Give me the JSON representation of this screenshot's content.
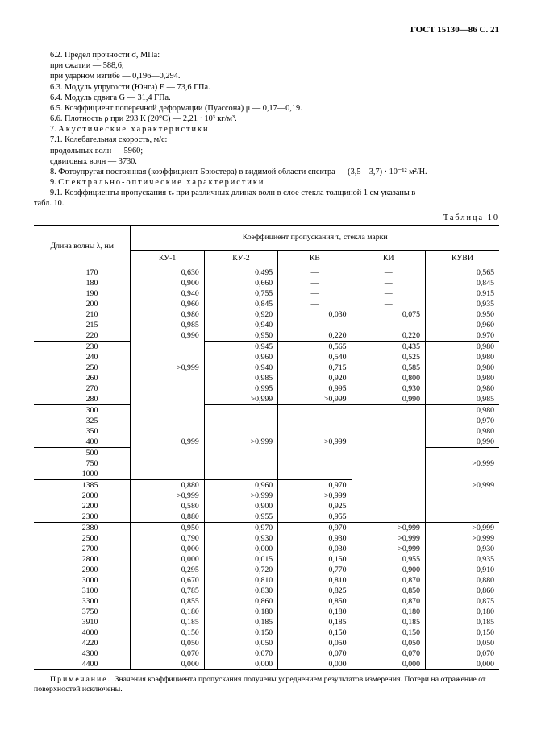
{
  "header": "ГОСТ 15130—86 С. 21",
  "p": {
    "l1": "6.2.  Предел прочности σ, МПа:",
    "l2": "при сжатии — 588,6;",
    "l3": "при ударном изгибе — 0,196—0,294.",
    "l4": "6.3.  Модуль упругости (Юнга) E — 73,6 ГПа.",
    "l5": "6.4.  Модуль сдвига G — 31,4 ГПа.",
    "l6": "6.5.  Коэффициент поперечной деформации (Пуассона) μ — 0,17—0,19.",
    "l7": "6.6.  Плотность ρ при 293 К (20°С) — 2,21 · 10³ кг/м³.",
    "l8a": "7.  ",
    "l8b": "Акустические характеристики",
    "l9": "7.1.  Колебательная скорость, м/с:",
    "l10": "продольных волн — 5960;",
    "l11": "сдвиговых волн — 3730.",
    "l12": "8.  Фотоупругая постоянная (коэффициент Брюстера) в видимой области спектра — (3,5—3,7) · 10⁻¹² м²/Н.",
    "l13a": "9.  ",
    "l13b": "Спектрально-оптические характеристики",
    "l14": "9.1.  Коэффициенты пропускания τᵥ при различных длинах волн в слое стекла толщиной 1 см указаны в",
    "l15": "табл. 10."
  },
  "tableLabel": "Таблица 10",
  "th": {
    "wave": "Длина волны λ, нм",
    "group": "Коэффициент пропускания τᵥ стекла марки",
    "c1": "КУ-1",
    "c2": "КУ-2",
    "c3": "КВ",
    "c4": "КИ",
    "c5": "КУВИ"
  },
  "rows": [
    {
      "w": "170",
      "v": [
        "0,630",
        "0,495",
        "—",
        "—",
        "0,565"
      ],
      "top": [
        "t",
        "t",
        "t",
        "t",
        "t",
        "t"
      ]
    },
    {
      "w": "180",
      "v": [
        "0,900",
        "0,660",
        "—",
        "—",
        "0,845"
      ]
    },
    {
      "w": "190",
      "v": [
        "0,940",
        "0,755",
        "—",
        "—",
        "0,915"
      ]
    },
    {
      "w": "200",
      "v": [
        "0,960",
        "0,845",
        "—",
        "—",
        "0,935"
      ]
    },
    {
      "w": "210",
      "v": [
        "0,980",
        "0,920",
        "0,030",
        "0,075",
        "0,950"
      ]
    },
    {
      "w": "215",
      "v": [
        "0,985",
        "0,940",
        "—",
        "—",
        "0,960"
      ]
    },
    {
      "w": "220",
      "v": [
        "0,990",
        "0,950",
        "0,220",
        "0,220",
        "0,970"
      ]
    },
    {
      "w": "230",
      "v": [
        "",
        "0,945",
        "0,565",
        "0,435",
        "0,980"
      ],
      "top": [
        "t",
        "",
        "t",
        "t",
        "t",
        "t"
      ]
    },
    {
      "w": "240",
      "v": [
        "",
        "0,960",
        "0,540",
        "0,525",
        "0,980"
      ]
    },
    {
      "w": "250",
      "v": [
        ">0,999",
        "0,940",
        "0,715",
        "0,585",
        "0,980"
      ]
    },
    {
      "w": "260",
      "v": [
        "",
        "0,985",
        "0,920",
        "0,800",
        "0,980"
      ]
    },
    {
      "w": "270",
      "v": [
        "",
        "0,995",
        "0,995",
        "0,930",
        "0,980"
      ]
    },
    {
      "w": "280",
      "v": [
        "",
        ">0,999",
        ">0,999",
        "0,990",
        "0,985"
      ]
    },
    {
      "w": "300",
      "v": [
        "",
        "",
        "",
        "",
        "0,980"
      ],
      "top": [
        "t",
        "",
        "t",
        "t",
        "t",
        "t"
      ]
    },
    {
      "w": "325",
      "v": [
        "",
        "",
        "",
        "",
        "0,970"
      ]
    },
    {
      "w": "350",
      "v": [
        "",
        "",
        "",
        "",
        "0,980"
      ]
    },
    {
      "w": "400",
      "v": [
        "0,999",
        ">0,999",
        ">0,999",
        "",
        "0,990"
      ]
    },
    {
      "w": "500",
      "v": [
        "",
        "",
        "",
        "",
        ""
      ],
      "top": [
        "t",
        "",
        "",
        "",
        "",
        "t"
      ]
    },
    {
      "w": "750",
      "v": [
        "",
        "",
        "",
        "",
        ">0,999"
      ]
    },
    {
      "w": "1000",
      "v": [
        "",
        "",
        "",
        "",
        ""
      ]
    },
    {
      "w": "1385",
      "v": [
        "0,880",
        "0,960",
        "0,970",
        "",
        ">0,999"
      ],
      "top": [
        "t",
        "t",
        "t",
        "t",
        "",
        ""
      ]
    },
    {
      "w": "2000",
      "v": [
        ">0,999",
        ">0,999",
        ">0,999",
        "",
        ""
      ]
    },
    {
      "w": "2200",
      "v": [
        "0,580",
        "0,900",
        "0,925",
        "",
        ""
      ]
    },
    {
      "w": "2300",
      "v": [
        "0,880",
        "0,955",
        "0,955",
        "",
        ""
      ]
    },
    {
      "w": "2380",
      "v": [
        "0,950",
        "0,970",
        "0,970",
        ">0,999",
        ">0,999"
      ],
      "top": [
        "t",
        "t",
        "t",
        "t",
        "t",
        "t"
      ]
    },
    {
      "w": "2500",
      "v": [
        "0,790",
        "0,930",
        "0,930",
        ">0,999",
        ">0,999"
      ]
    },
    {
      "w": "2700",
      "v": [
        "0,000",
        "0,000",
        "0,030",
        ">0,999",
        "0,930"
      ]
    },
    {
      "w": "2800",
      "v": [
        "0,000",
        "0,015",
        "0,150",
        "0,955",
        "0,935"
      ]
    },
    {
      "w": "2900",
      "v": [
        "0,295",
        "0,720",
        "0,770",
        "0,900",
        "0,910"
      ]
    },
    {
      "w": "3000",
      "v": [
        "0,670",
        "0,810",
        "0,810",
        "0,870",
        "0,880"
      ]
    },
    {
      "w": "3100",
      "v": [
        "0,785",
        "0,830",
        "0,825",
        "0,850",
        "0,860"
      ]
    },
    {
      "w": "3300",
      "v": [
        "0,855",
        "0,860",
        "0,850",
        "0,870",
        "0,875"
      ]
    },
    {
      "w": "3750",
      "v": [
        "0,180",
        "0,180",
        "0,180",
        "0,180",
        "0,180"
      ]
    },
    {
      "w": "3910",
      "v": [
        "0,185",
        "0,185",
        "0,185",
        "0,185",
        "0,185"
      ]
    },
    {
      "w": "4000",
      "v": [
        "0,150",
        "0,150",
        "0,150",
        "0,150",
        "0,150"
      ]
    },
    {
      "w": "4220",
      "v": [
        "0,050",
        "0,050",
        "0,050",
        "0,050",
        "0,050"
      ]
    },
    {
      "w": "4300",
      "v": [
        "0,070",
        "0,070",
        "0,070",
        "0,070",
        "0,070"
      ]
    },
    {
      "w": "4400",
      "v": [
        "0,000",
        "0,000",
        "0,000",
        "0,000",
        "0,000"
      ],
      "bottom": [
        "b",
        "b",
        "b",
        "b",
        "b",
        "b"
      ]
    }
  ],
  "note": {
    "label": "Примечание. ",
    "text": "Значения коэффициента пропускания получены усреднением результатов измерения. Потери на отражение от поверхностей исключены."
  }
}
